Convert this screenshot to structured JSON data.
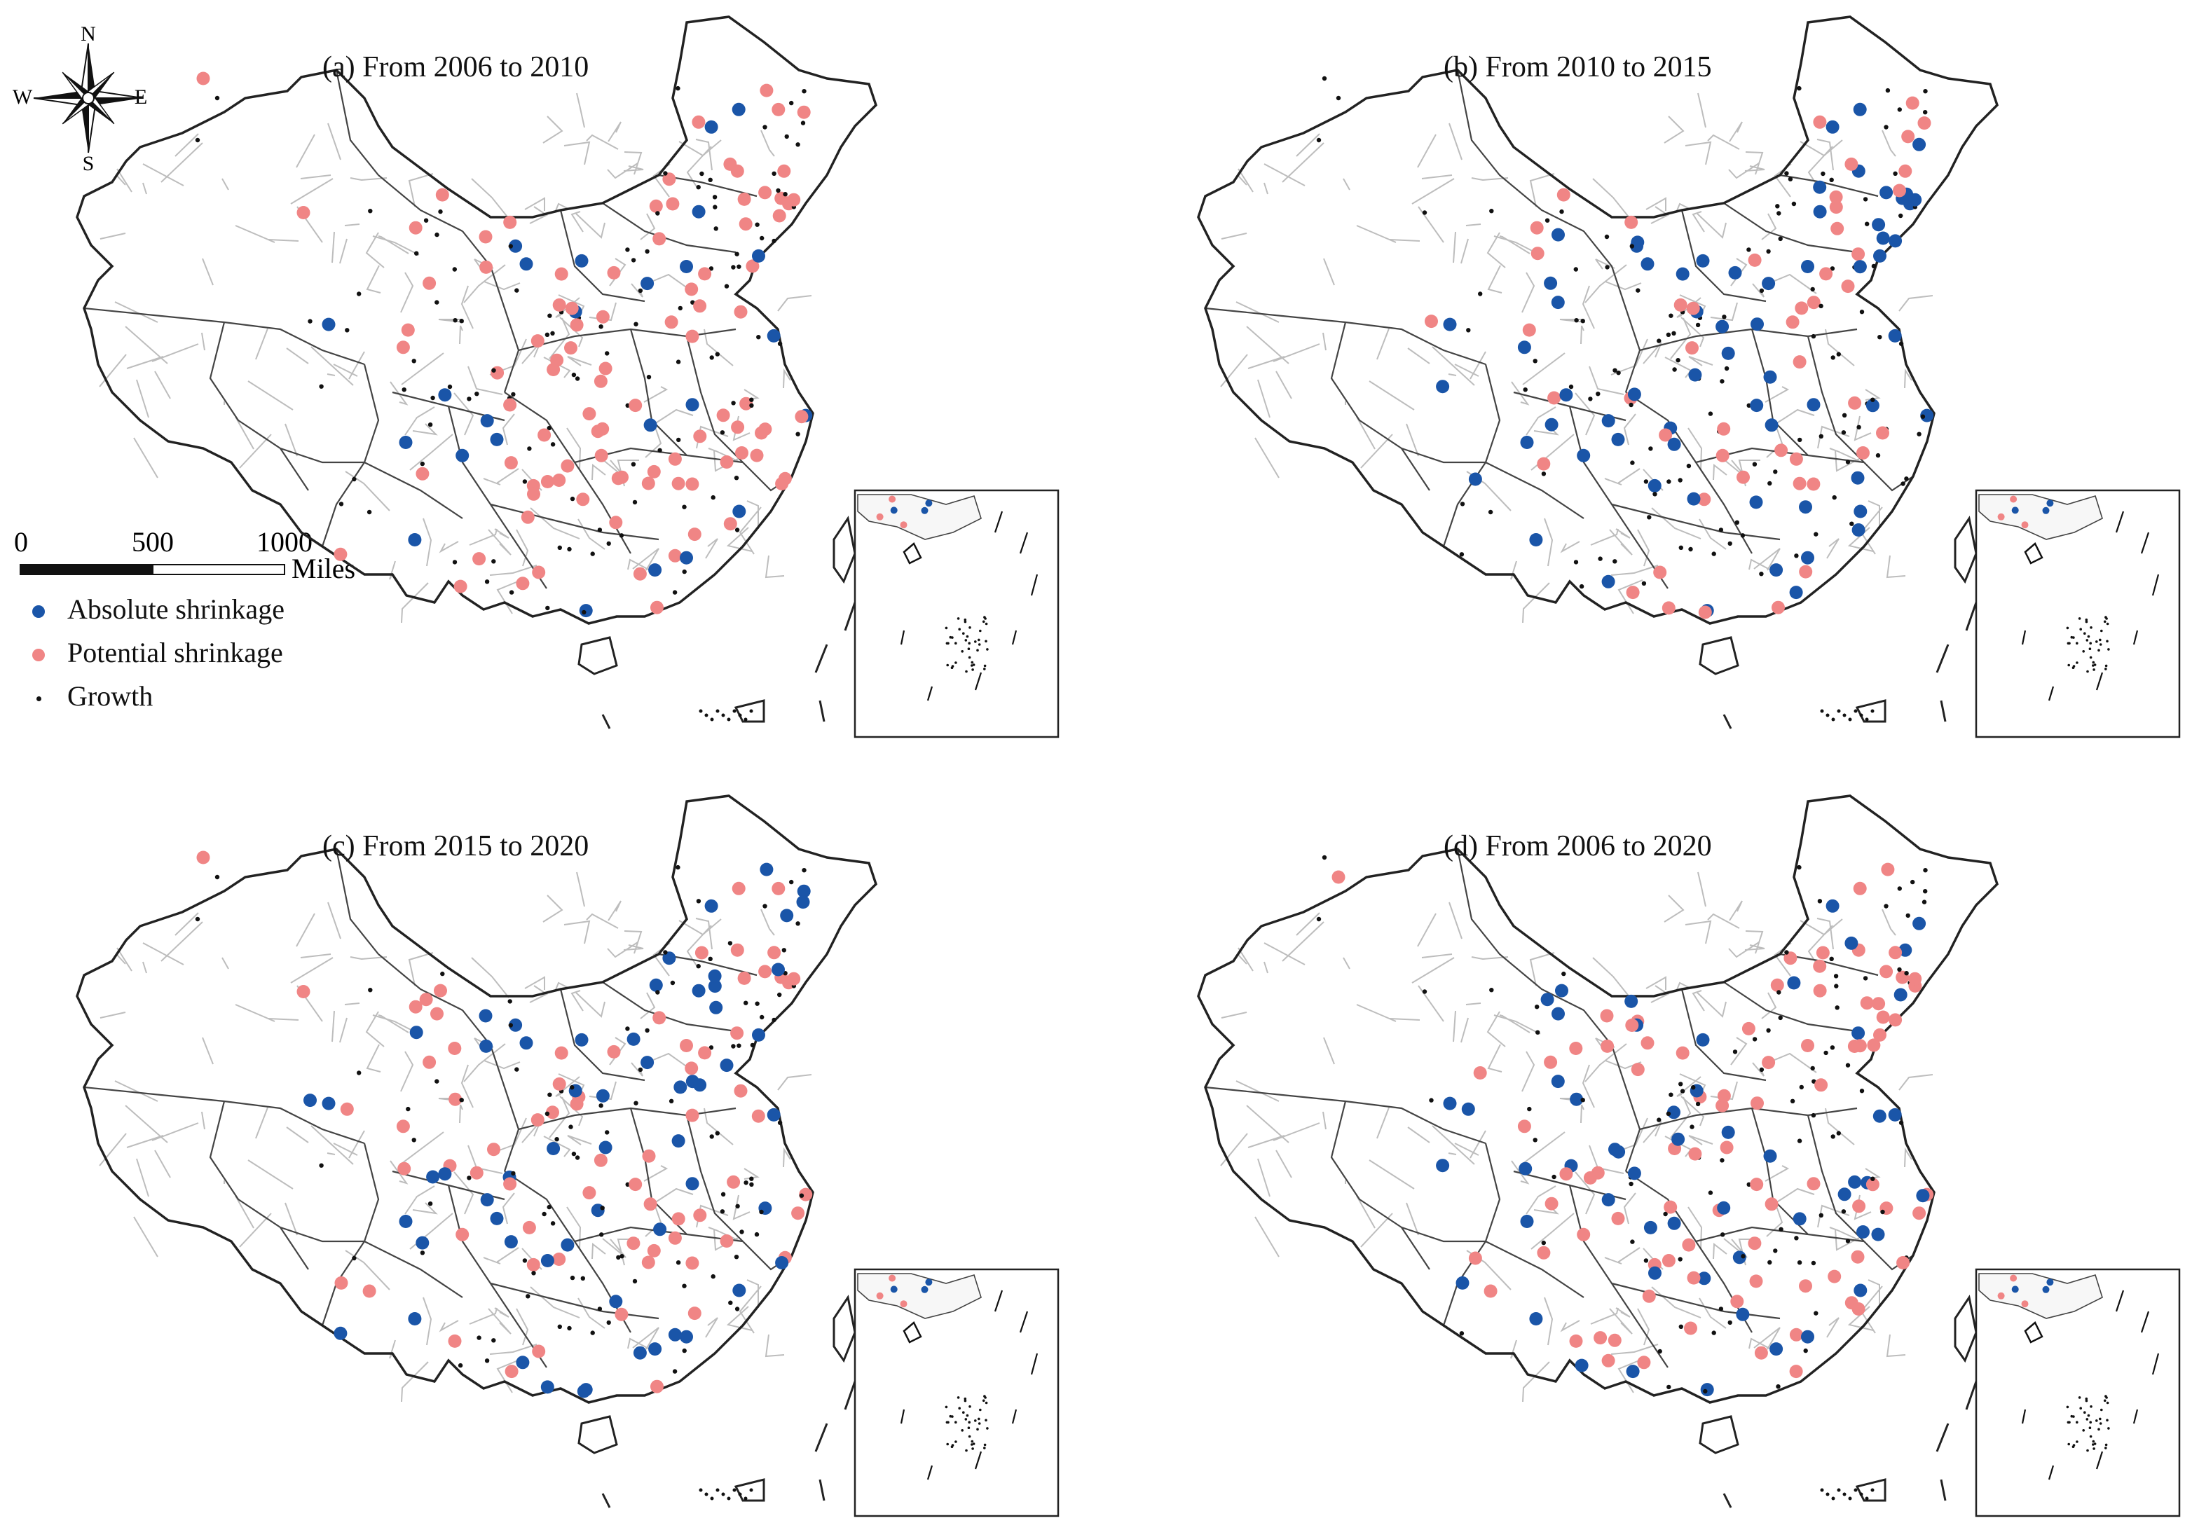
{
  "panels": [
    {
      "id": "a",
      "title": "(a)  From 2006 to 2010"
    },
    {
      "id": "b",
      "title": "(b)  From 2010 to 2015"
    },
    {
      "id": "c",
      "title": "(c)  From 2015 to 2020"
    },
    {
      "id": "d",
      "title": "(d)  From 2006 to 2020"
    }
  ],
  "compass": {
    "n": "N",
    "s": "S",
    "e": "E",
    "w": "W"
  },
  "scale": {
    "ticks": [
      "0",
      "500",
      "1000"
    ],
    "units": "Miles"
  },
  "legend": {
    "items": [
      {
        "label": "Absolute shrinkage",
        "color": "#1a55a8"
      },
      {
        "label": "Potential shrinkage",
        "color": "#f08585"
      },
      {
        "label": "Growth",
        "color": "#111111"
      }
    ]
  },
  "colors": {
    "absolute": "#1a55a8",
    "potential": "#f08585",
    "growth": "#111111",
    "national_border": "#222222",
    "province_border": "#444444",
    "city_border": "#bdbdbd"
  }
}
